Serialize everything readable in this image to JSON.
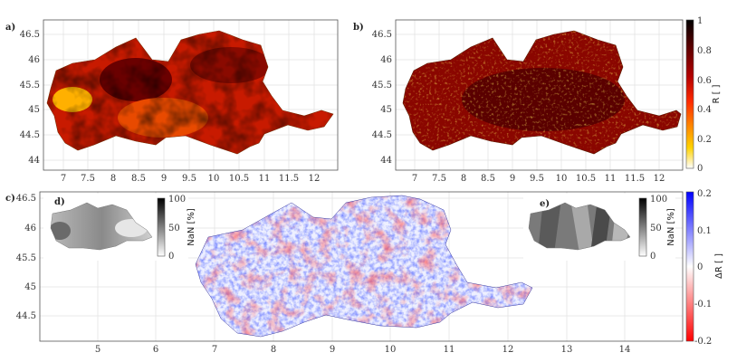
{
  "panels": {
    "a": {
      "label": "a)",
      "xticks": [
        "7",
        "7.5",
        "8",
        "8.5",
        "9",
        "9.5",
        "10",
        "10.5",
        "11",
        "11.5",
        "12"
      ],
      "yticks": [
        "46.5",
        "46",
        "45.5",
        "45",
        "44.5",
        "44"
      ]
    },
    "b": {
      "label": "b)",
      "xticks": [
        "7",
        "7.5",
        "8",
        "8.5",
        "9",
        "9.5",
        "10",
        "10.5",
        "11",
        "11.5",
        "12"
      ],
      "yticks": [
        "46.5",
        "46",
        "45.5",
        "45",
        "44.5",
        "44"
      ]
    },
    "c": {
      "label": "c)",
      "xticks": [
        "5",
        "6",
        "7",
        "8",
        "9",
        "10",
        "11",
        "12",
        "13",
        "14"
      ],
      "yticks": [
        "46.5",
        "46",
        "45.5",
        "45",
        "44.5"
      ]
    },
    "d": {
      "label": "d)"
    },
    "e": {
      "label": "e)"
    }
  },
  "colorbars": {
    "R": {
      "title": "R [ ]",
      "ticks": [
        "1",
        "0.8",
        "0.6",
        "0.4",
        "0.2",
        "0"
      ],
      "colors": [
        "#000000",
        "#5a0000",
        "#b30000",
        "#ff2a00",
        "#ff8a00",
        "#ffd200",
        "#ffffff"
      ]
    },
    "nan_d": {
      "title": "NaN [%]",
      "ticks": [
        "100",
        "50",
        "0"
      ]
    },
    "nan_e": {
      "title": "NaN [%]",
      "ticks": [
        "100",
        "50",
        "0"
      ]
    },
    "dR": {
      "title": "ΔR [ ]",
      "ticks": [
        "0.2",
        "0.1",
        "0",
        "-0.1",
        "-0.2"
      ],
      "colors": [
        "#0000ff",
        "#8080ff",
        "#ffffff",
        "#ff8080",
        "#ff0000"
      ]
    }
  }
}
